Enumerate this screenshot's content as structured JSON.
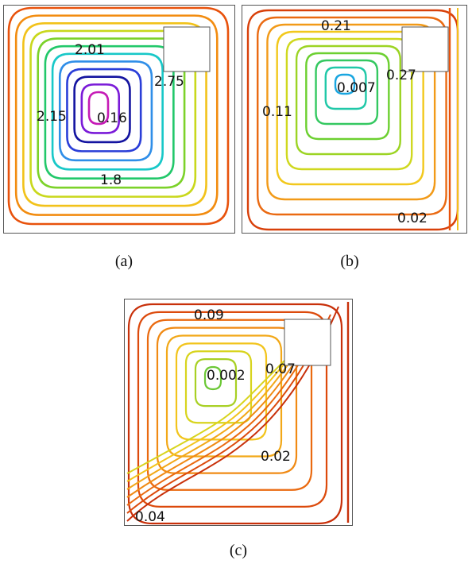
{
  "panels": [
    {
      "id": "a",
      "caption": "(a)",
      "labels": [
        "2.01",
        "2.75",
        "2.15",
        "0.16",
        "1.8"
      ],
      "colors": [
        "#e8520c",
        "#f28c10",
        "#f2c21a",
        "#c9d81c",
        "#7cd22a",
        "#22c86a",
        "#18c8c8",
        "#2f8ee8",
        "#2a3ed8",
        "#1414a0",
        "#7a1ad8",
        "#c51ab6"
      ]
    },
    {
      "id": "b",
      "caption": "(b)",
      "labels": [
        "0.21",
        "0.27",
        "0.007",
        "0.11",
        "0.02"
      ],
      "colors": [
        "#d8400a",
        "#ea6a12",
        "#f29a18",
        "#f2c81c",
        "#cfd81e",
        "#9cd424",
        "#6cd030",
        "#34c860",
        "#20c8a8",
        "#1aa6e0"
      ]
    },
    {
      "id": "c",
      "caption": "(c)",
      "labels": [
        "0.09",
        "0.07",
        "0.002",
        "0.02",
        "0.04"
      ],
      "colors": [
        "#c8300a",
        "#dc4a0c",
        "#ea6a10",
        "#f08a14",
        "#f2a818",
        "#f2c41c",
        "#d8d41e",
        "#a8d024",
        "#6cc836"
      ]
    }
  ]
}
